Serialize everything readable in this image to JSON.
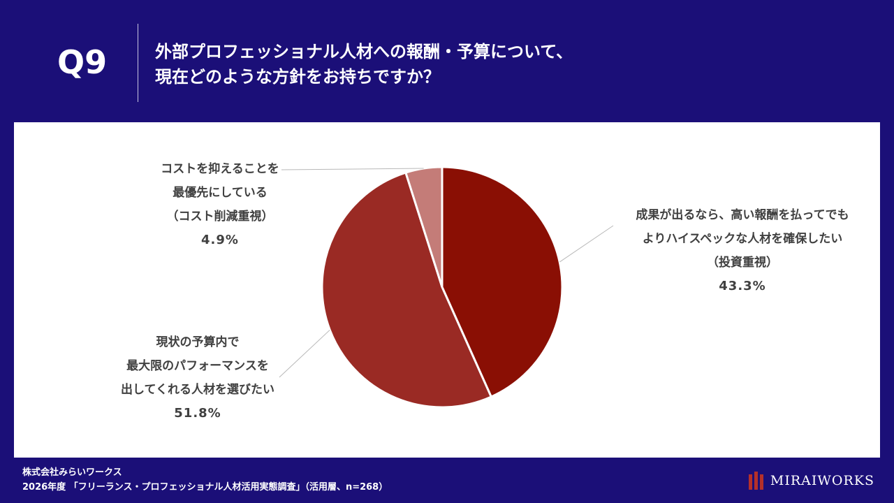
{
  "header": {
    "q_label": "Q9",
    "question_line1": "外部プロフェッショナル人材への報酬・予算について、",
    "question_line2": "現在どのような方針をお持ちですか？"
  },
  "chart_data": {
    "type": "pie",
    "slices": [
      {
        "label_lines": [
          "成果が出るなら、高い報酬を払ってでも",
          "よりハイスペックな人材を確保したい",
          "（投資重視）"
        ],
        "value": 43.3,
        "value_label": "43.3%",
        "color": "#8a0f04"
      },
      {
        "label_lines": [
          "現状の予算内で",
          "最大限のパフォーマンスを",
          "出してくれる人材を選びたい"
        ],
        "value": 51.8,
        "value_label": "51.8%",
        "color": "#9a2a24"
      },
      {
        "label_lines": [
          "コストを抑えることを",
          "最優先にしている",
          "（コスト削減重視）"
        ],
        "value": 4.9,
        "value_label": "4.9%",
        "color": "#c47c78"
      }
    ]
  },
  "footer": {
    "company": "株式会社みらいワークス",
    "source": "2026年度 「フリーランス・プロフェッショナル人材活用実態調査」（活用層、n=268）"
  },
  "logo": {
    "text": "MIRAIWORKS"
  }
}
